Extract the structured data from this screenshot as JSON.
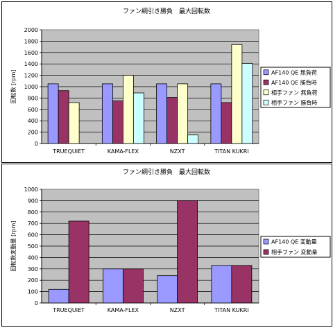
{
  "chart_data": [
    {
      "type": "bar",
      "title": "ファン綱引き勝負　最大回転数",
      "xlabel": "",
      "ylabel": "回転数 [rpm]",
      "ylim": [
        0,
        2000
      ],
      "yticks": [
        0,
        200,
        400,
        600,
        800,
        1000,
        1200,
        1400,
        1600,
        1800,
        2000
      ],
      "grid": true,
      "legend_position": "right",
      "categories": [
        "TRUEQUIET",
        "KAMA-FLEX",
        "NZXT",
        "TITAN KUKRI"
      ],
      "series": [
        {
          "name": "AF140 QE 無負荷",
          "color": "#9999ff",
          "values": [
            1050,
            1050,
            1050,
            1050
          ]
        },
        {
          "name": "AF140 QE 勝負時",
          "color": "#993366",
          "values": [
            930,
            750,
            810,
            720
          ]
        },
        {
          "name": "相手ファン 無負荷",
          "color": "#ffffcc",
          "values": [
            720,
            1200,
            1050,
            1740
          ]
        },
        {
          "name": "相手ファン 勝負時",
          "color": "#ccffff",
          "values": [
            0,
            890,
            150,
            1410
          ]
        }
      ]
    },
    {
      "type": "bar",
      "title": "ファン綱引き勝負　最大回転数",
      "xlabel": "",
      "ylabel": "回転数変動量 [rpm]",
      "ylim": [
        0,
        1000
      ],
      "yticks": [
        0,
        100,
        200,
        300,
        400,
        500,
        600,
        700,
        800,
        900,
        1000
      ],
      "grid": true,
      "legend_position": "right",
      "categories": [
        "TRUEQUIET",
        "KAMA-FLEX",
        "NZXT",
        "TITAN KUKRI"
      ],
      "series": [
        {
          "name": "AF140 QE 変動量",
          "color": "#9999ff",
          "values": [
            120,
            300,
            240,
            330
          ]
        },
        {
          "name": "相手ファン 変動量",
          "color": "#993366",
          "values": [
            720,
            300,
            900,
            330
          ]
        }
      ]
    }
  ]
}
